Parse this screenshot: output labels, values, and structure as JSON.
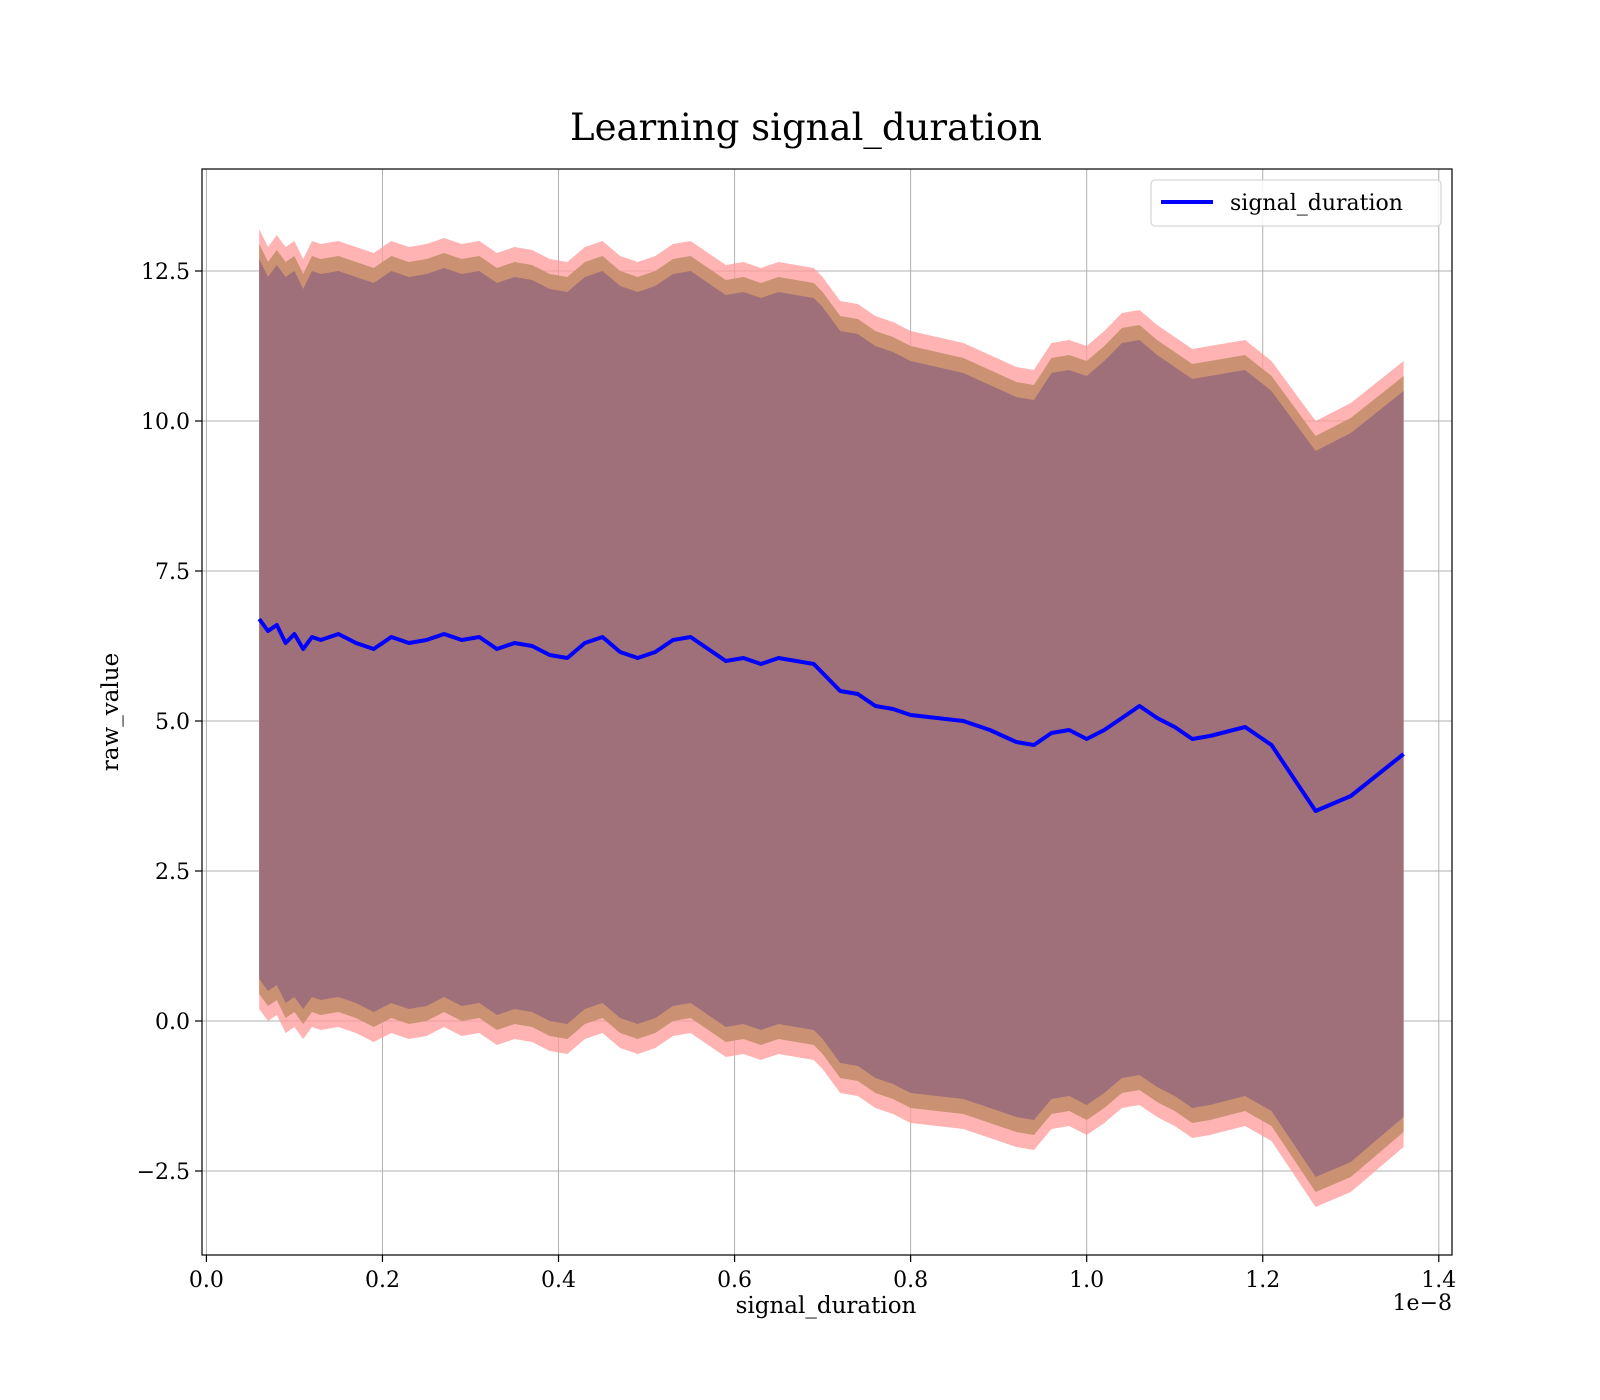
{
  "chart_data": {
    "type": "line",
    "title": "Learning signal_duration",
    "xlabel": "signal_duration",
    "ylabel": "raw_value",
    "x_offset_label": "1e−8",
    "xlim": [
      -0.005,
      1.415
    ],
    "ylim": [
      -3.9,
      14.2
    ],
    "x_ticks": [
      0.0,
      0.2,
      0.4,
      0.6,
      0.8,
      1.0,
      1.2,
      1.4
    ],
    "x_tick_labels": [
      "0.0",
      "0.2",
      "0.4",
      "0.6",
      "0.8",
      "1.0",
      "1.2",
      "1.4"
    ],
    "y_ticks": [
      -2.5,
      0.0,
      2.5,
      5.0,
      7.5,
      10.0,
      12.5
    ],
    "y_tick_labels": [
      "−2.5",
      "0.0",
      "2.5",
      "5.0",
      "7.5",
      "10.0",
      "12.5"
    ],
    "grid": true,
    "legend_position": "top-right",
    "colors": {
      "line": "#0000ff",
      "outer_band": "#ff9999",
      "middle_band": "#c79070",
      "inner_band": "#a0707a",
      "grid": "#b0b0b0"
    },
    "series": [
      {
        "name": "signal_duration",
        "x": [
          0.06,
          0.07,
          0.08,
          0.09,
          0.1,
          0.11,
          0.12,
          0.13,
          0.15,
          0.17,
          0.19,
          0.21,
          0.23,
          0.25,
          0.27,
          0.29,
          0.31,
          0.33,
          0.35,
          0.37,
          0.39,
          0.41,
          0.43,
          0.45,
          0.47,
          0.49,
          0.51,
          0.53,
          0.55,
          0.57,
          0.59,
          0.61,
          0.63,
          0.65,
          0.67,
          0.69,
          0.7,
          0.72,
          0.74,
          0.76,
          0.78,
          0.8,
          0.83,
          0.86,
          0.89,
          0.92,
          0.94,
          0.96,
          0.98,
          1.0,
          1.02,
          1.04,
          1.06,
          1.08,
          1.1,
          1.12,
          1.14,
          1.18,
          1.21,
          1.26,
          1.3,
          1.36
        ],
        "y": [
          6.7,
          6.5,
          6.6,
          6.3,
          6.45,
          6.2,
          6.4,
          6.35,
          6.45,
          6.3,
          6.2,
          6.4,
          6.3,
          6.35,
          6.45,
          6.35,
          6.4,
          6.2,
          6.3,
          6.25,
          6.1,
          6.05,
          6.3,
          6.4,
          6.15,
          6.05,
          6.15,
          6.35,
          6.4,
          6.2,
          6.0,
          6.05,
          5.95,
          6.05,
          6.0,
          5.95,
          5.8,
          5.5,
          5.45,
          5.25,
          5.2,
          5.1,
          5.05,
          5.0,
          4.85,
          4.65,
          4.6,
          4.8,
          4.85,
          4.7,
          4.85,
          5.05,
          5.25,
          5.05,
          4.9,
          4.7,
          4.75,
          4.9,
          4.6,
          3.5,
          3.75,
          4.45
        ]
      }
    ],
    "bands": [
      {
        "role": "outer",
        "upper": [
          13.2,
          12.9,
          13.1,
          12.9,
          13.0,
          12.7,
          13.0,
          12.95,
          13.0,
          12.9,
          12.8,
          13.0,
          12.9,
          12.95,
          13.05,
          12.95,
          13.0,
          12.8,
          12.9,
          12.85,
          12.7,
          12.65,
          12.9,
          13.0,
          12.75,
          12.65,
          12.75,
          12.95,
          13.0,
          12.8,
          12.6,
          12.65,
          12.55,
          12.65,
          12.6,
          12.55,
          12.4,
          12.0,
          11.95,
          11.75,
          11.65,
          11.5,
          11.4,
          11.3,
          11.1,
          10.9,
          10.85,
          11.3,
          11.35,
          11.25,
          11.5,
          11.8,
          11.85,
          11.6,
          11.4,
          11.2,
          11.25,
          11.35,
          11.0,
          10.0,
          10.3,
          11.0
        ],
        "lower": [
          0.2,
          0.0,
          0.1,
          -0.2,
          -0.1,
          -0.3,
          -0.1,
          -0.15,
          -0.1,
          -0.2,
          -0.35,
          -0.2,
          -0.3,
          -0.25,
          -0.1,
          -0.25,
          -0.2,
          -0.4,
          -0.3,
          -0.35,
          -0.5,
          -0.55,
          -0.3,
          -0.2,
          -0.45,
          -0.55,
          -0.45,
          -0.25,
          -0.2,
          -0.4,
          -0.6,
          -0.55,
          -0.65,
          -0.55,
          -0.6,
          -0.65,
          -0.8,
          -1.2,
          -1.25,
          -1.45,
          -1.55,
          -1.7,
          -1.75,
          -1.8,
          -1.95,
          -2.1,
          -2.15,
          -1.8,
          -1.75,
          -1.9,
          -1.7,
          -1.45,
          -1.4,
          -1.6,
          -1.75,
          -1.95,
          -1.9,
          -1.75,
          -2.0,
          -3.1,
          -2.85,
          -2.1
        ]
      },
      {
        "role": "middle",
        "upper": [
          12.95,
          12.65,
          12.85,
          12.65,
          12.75,
          12.45,
          12.75,
          12.7,
          12.75,
          12.65,
          12.55,
          12.75,
          12.65,
          12.7,
          12.8,
          12.7,
          12.75,
          12.55,
          12.65,
          12.6,
          12.45,
          12.4,
          12.65,
          12.75,
          12.5,
          12.4,
          12.5,
          12.7,
          12.75,
          12.55,
          12.35,
          12.4,
          12.3,
          12.4,
          12.35,
          12.3,
          12.15,
          11.75,
          11.7,
          11.5,
          11.4,
          11.25,
          11.15,
          11.05,
          10.85,
          10.65,
          10.6,
          11.05,
          11.1,
          11.0,
          11.25,
          11.55,
          11.6,
          11.35,
          11.15,
          10.95,
          11.0,
          11.1,
          10.75,
          9.75,
          10.05,
          10.75
        ],
        "lower": [
          0.45,
          0.25,
          0.35,
          0.05,
          0.15,
          -0.05,
          0.15,
          0.1,
          0.15,
          0.05,
          -0.1,
          0.05,
          -0.05,
          0.0,
          0.15,
          0.0,
          0.05,
          -0.15,
          -0.05,
          -0.1,
          -0.25,
          -0.3,
          -0.05,
          0.05,
          -0.2,
          -0.3,
          -0.2,
          0.0,
          0.05,
          -0.15,
          -0.35,
          -0.3,
          -0.4,
          -0.3,
          -0.35,
          -0.4,
          -0.55,
          -0.95,
          -1.0,
          -1.2,
          -1.3,
          -1.45,
          -1.5,
          -1.55,
          -1.7,
          -1.85,
          -1.9,
          -1.55,
          -1.5,
          -1.65,
          -1.45,
          -1.2,
          -1.15,
          -1.35,
          -1.5,
          -1.7,
          -1.65,
          -1.5,
          -1.75,
          -2.85,
          -2.6,
          -1.85
        ]
      },
      {
        "role": "inner",
        "upper": [
          12.7,
          12.4,
          12.6,
          12.4,
          12.5,
          12.2,
          12.5,
          12.45,
          12.5,
          12.4,
          12.3,
          12.5,
          12.4,
          12.45,
          12.55,
          12.45,
          12.5,
          12.3,
          12.4,
          12.35,
          12.2,
          12.15,
          12.4,
          12.5,
          12.25,
          12.15,
          12.25,
          12.45,
          12.5,
          12.3,
          12.1,
          12.15,
          12.05,
          12.15,
          12.1,
          12.05,
          11.9,
          11.5,
          11.45,
          11.25,
          11.15,
          11.0,
          10.9,
          10.8,
          10.6,
          10.4,
          10.35,
          10.8,
          10.85,
          10.75,
          11.0,
          11.3,
          11.35,
          11.1,
          10.9,
          10.7,
          10.75,
          10.85,
          10.5,
          9.5,
          9.8,
          10.5
        ],
        "lower": [
          0.7,
          0.5,
          0.6,
          0.3,
          0.4,
          0.2,
          0.4,
          0.35,
          0.4,
          0.3,
          0.15,
          0.3,
          0.2,
          0.25,
          0.4,
          0.25,
          0.3,
          0.1,
          0.2,
          0.15,
          0.0,
          -0.05,
          0.2,
          0.3,
          0.05,
          -0.05,
          0.05,
          0.25,
          0.3,
          0.1,
          -0.1,
          -0.05,
          -0.15,
          -0.05,
          -0.1,
          -0.15,
          -0.3,
          -0.7,
          -0.75,
          -0.95,
          -1.05,
          -1.2,
          -1.25,
          -1.3,
          -1.45,
          -1.6,
          -1.65,
          -1.3,
          -1.25,
          -1.4,
          -1.2,
          -0.95,
          -0.9,
          -1.1,
          -1.25,
          -1.45,
          -1.4,
          -1.25,
          -1.5,
          -2.6,
          -2.35,
          -1.6
        ]
      }
    ]
  }
}
